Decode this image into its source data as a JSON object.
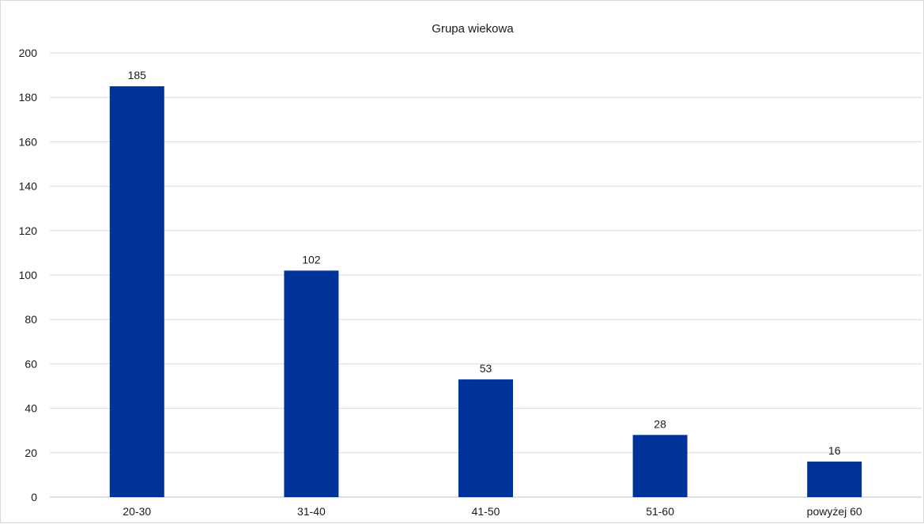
{
  "chart_data": {
    "type": "bar",
    "title": "Grupa wiekowa",
    "categories": [
      "20-30",
      "31-40",
      "41-50",
      "51-60",
      "powyżej 60"
    ],
    "values": [
      185,
      102,
      53,
      28,
      16
    ],
    "data_labels": [
      "185",
      "102",
      "53",
      "28",
      "16"
    ],
    "xlabel": "",
    "ylabel": "",
    "ylim": [
      0,
      200
    ],
    "yticks": [
      0,
      20,
      40,
      60,
      80,
      100,
      120,
      140,
      160,
      180,
      200
    ],
    "grid": true,
    "legend": "none",
    "bar_color": "#003399"
  }
}
